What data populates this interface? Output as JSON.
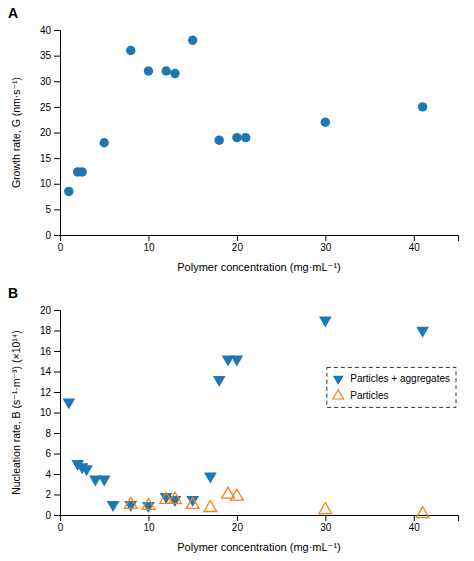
{
  "chart_data": [
    {
      "type": "scatter",
      "title": "A",
      "xlabel": "Polymer concentration (mg·mL⁻¹)",
      "ylabel": "Growth rate, G (nm·s⁻¹)",
      "x": [
        1,
        2,
        2.5,
        5,
        8,
        10,
        12,
        13,
        15,
        18,
        20,
        21,
        30,
        41
      ],
      "values": [
        8.5,
        12.3,
        12.3,
        18,
        36,
        32,
        32,
        31.5,
        38,
        18.5,
        19,
        19,
        22,
        25
      ],
      "marker": "circle",
      "xlim": [
        0,
        45
      ],
      "ylim": [
        0,
        40
      ],
      "xticks": [
        0,
        10,
        20,
        30,
        40
      ],
      "yticks": [
        0,
        5,
        10,
        15,
        20,
        25,
        30,
        35,
        40
      ],
      "grid": false
    },
    {
      "type": "scatter",
      "title": "B",
      "xlabel": "Polymer concentration (mg·mL⁻¹)",
      "ylabel": "Nucleation rate, B (s⁻¹·m⁻³) (×10¹⁴)",
      "series": [
        {
          "name": "Particles + aggregates",
          "marker": "triangle-down",
          "x": [
            1,
            2,
            2.5,
            3,
            4,
            5,
            6,
            8,
            10,
            12,
            13,
            15,
            17,
            18,
            19,
            20,
            30,
            41
          ],
          "values": [
            11,
            5.0,
            4.7,
            4.5,
            3.5,
            3.5,
            1.0,
            1.0,
            0.9,
            1.8,
            1.5,
            1.5,
            3.8,
            13.2,
            15.2,
            15.2,
            19,
            18
          ]
        },
        {
          "name": "Particles",
          "marker": "triangle-up-open",
          "x": [
            8,
            10,
            12,
            13,
            15,
            17,
            19,
            20,
            30,
            41
          ],
          "values": [
            1.0,
            0.9,
            1.5,
            1.5,
            1.0,
            0.7,
            2.0,
            1.8,
            0.5,
            0.1
          ]
        }
      ],
      "xlim": [
        0,
        45
      ],
      "ylim": [
        0,
        20
      ],
      "xticks": [
        0,
        10,
        20,
        30,
        40
      ],
      "yticks": [
        0,
        2,
        4,
        6,
        8,
        10,
        12,
        14,
        16,
        18,
        20
      ],
      "legend": "upper right",
      "grid": false
    }
  ]
}
